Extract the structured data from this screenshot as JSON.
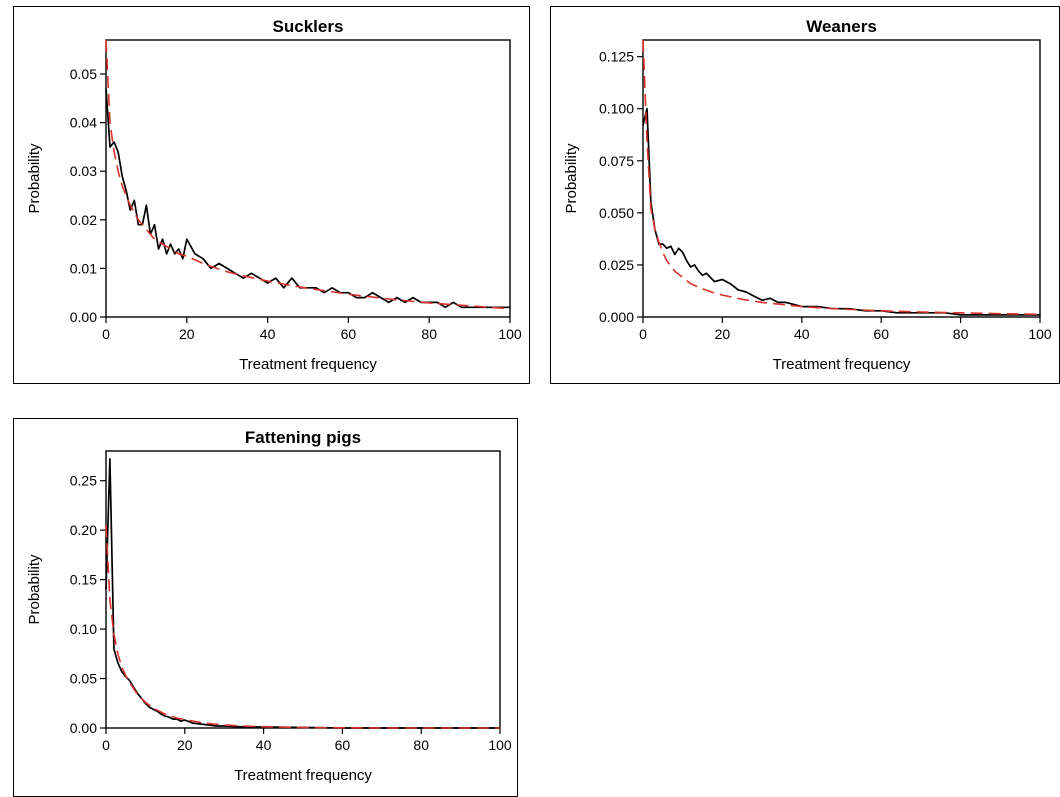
{
  "chart_data": [
    {
      "type": "line",
      "title": "Sucklers",
      "xlabel": "Treatment frequency",
      "ylabel": "Probability",
      "xlim": [
        0,
        100
      ],
      "ylim": [
        0,
        0.057
      ],
      "xticks": [
        "0",
        "20",
        "40",
        "60",
        "80",
        "100"
      ],
      "xtick_values": [
        0,
        20,
        40,
        60,
        80,
        100
      ],
      "yticks": [
        "0.00",
        "0.01",
        "0.02",
        "0.03",
        "0.04",
        "0.05"
      ],
      "ytick_values": [
        0,
        0.01,
        0.02,
        0.03,
        0.04,
        0.05
      ],
      "grid": false,
      "series": [
        {
          "style": "solid",
          "color": "#000000",
          "x": [
            0,
            1,
            2,
            3,
            4,
            5,
            6,
            7,
            8,
            9,
            10,
            11,
            12,
            13,
            14,
            15,
            16,
            17,
            18,
            19,
            20,
            22,
            24,
            26,
            28,
            30,
            32,
            34,
            36,
            38,
            40,
            42,
            44,
            46,
            48,
            50,
            52,
            54,
            56,
            58,
            60,
            62,
            64,
            66,
            68,
            70,
            72,
            74,
            76,
            78,
            80,
            82,
            84,
            86,
            88,
            90,
            92,
            94,
            96,
            98,
            100
          ],
          "y": [
            0.047,
            0.035,
            0.036,
            0.034,
            0.029,
            0.026,
            0.022,
            0.024,
            0.019,
            0.019,
            0.023,
            0.017,
            0.019,
            0.014,
            0.016,
            0.013,
            0.015,
            0.013,
            0.014,
            0.012,
            0.016,
            0.013,
            0.012,
            0.01,
            0.011,
            0.01,
            0.009,
            0.008,
            0.009,
            0.008,
            0.007,
            0.008,
            0.006,
            0.008,
            0.006,
            0.006,
            0.006,
            0.005,
            0.006,
            0.005,
            0.005,
            0.004,
            0.004,
            0.005,
            0.004,
            0.003,
            0.004,
            0.003,
            0.004,
            0.003,
            0.003,
            0.003,
            0.002,
            0.003,
            0.002,
            0.002,
            0.002,
            0.002,
            0.002,
            0.002,
            0.002
          ]
        },
        {
          "style": "dashed",
          "color": "#d9322b",
          "x": [
            0,
            1,
            2,
            3,
            4,
            5,
            6,
            8,
            10,
            12,
            15,
            18,
            20,
            25,
            30,
            35,
            40,
            45,
            50,
            55,
            60,
            65,
            70,
            75,
            80,
            85,
            90,
            95,
            100
          ],
          "y": [
            0.057,
            0.04,
            0.034,
            0.03,
            0.027,
            0.025,
            0.023,
            0.02,
            0.018,
            0.016,
            0.0145,
            0.013,
            0.0125,
            0.0107,
            0.0093,
            0.0083,
            0.0074,
            0.0066,
            0.0059,
            0.0053,
            0.0047,
            0.0042,
            0.0037,
            0.0033,
            0.0029,
            0.0026,
            0.0023,
            0.002,
            0.0017
          ]
        }
      ]
    },
    {
      "type": "line",
      "title": "Weaners",
      "xlabel": "Treatment frequency",
      "ylabel": "Probability",
      "xlim": [
        0,
        100
      ],
      "ylim": [
        0,
        0.133
      ],
      "xticks": [
        "0",
        "20",
        "40",
        "60",
        "80",
        "100"
      ],
      "xtick_values": [
        0,
        20,
        40,
        60,
        80,
        100
      ],
      "yticks": [
        "0.000",
        "0.025",
        "0.050",
        "0.075",
        "0.100",
        "0.125"
      ],
      "ytick_values": [
        0,
        0.025,
        0.05,
        0.075,
        0.1,
        0.125
      ],
      "grid": false,
      "series": [
        {
          "style": "solid",
          "color": "#000000",
          "x": [
            0,
            1,
            2,
            3,
            4,
            5,
            6,
            7,
            8,
            9,
            10,
            11,
            12,
            13,
            14,
            15,
            16,
            18,
            20,
            22,
            24,
            26,
            28,
            30,
            32,
            34,
            36,
            38,
            40,
            44,
            48,
            52,
            56,
            60,
            64,
            68,
            72,
            76,
            80,
            84,
            88,
            92,
            96,
            100
          ],
          "y": [
            0.092,
            0.1,
            0.055,
            0.042,
            0.035,
            0.035,
            0.033,
            0.034,
            0.03,
            0.033,
            0.031,
            0.027,
            0.024,
            0.025,
            0.022,
            0.02,
            0.021,
            0.017,
            0.018,
            0.016,
            0.013,
            0.012,
            0.01,
            0.008,
            0.009,
            0.007,
            0.007,
            0.006,
            0.005,
            0.005,
            0.004,
            0.004,
            0.003,
            0.003,
            0.002,
            0.002,
            0.002,
            0.002,
            0.001,
            0.001,
            0.001,
            0.001,
            0.001,
            0.001
          ]
        },
        {
          "style": "dashed",
          "color": "#d9322b",
          "x": [
            0,
            1,
            2,
            3,
            4,
            5,
            6,
            8,
            10,
            12,
            15,
            18,
            20,
            25,
            30,
            35,
            40,
            50,
            60,
            70,
            80,
            90,
            100
          ],
          "y": [
            0.133,
            0.085,
            0.052,
            0.042,
            0.036,
            0.031,
            0.027,
            0.022,
            0.019,
            0.016,
            0.0135,
            0.0115,
            0.0105,
            0.0085,
            0.007,
            0.006,
            0.005,
            0.0038,
            0.003,
            0.0024,
            0.002,
            0.0016,
            0.0013
          ]
        }
      ]
    },
    {
      "type": "line",
      "title": "Fattening pigs",
      "xlabel": "Treatment frequency",
      "ylabel": "Probability",
      "xlim": [
        0,
        100
      ],
      "ylim": [
        0,
        0.28
      ],
      "xticks": [
        "0",
        "20",
        "40",
        "60",
        "80",
        "100"
      ],
      "xtick_values": [
        0,
        20,
        40,
        60,
        80,
        100
      ],
      "yticks": [
        "0.00",
        "0.05",
        "0.10",
        "0.15",
        "0.20",
        "0.25"
      ],
      "ytick_values": [
        0,
        0.05,
        0.1,
        0.15,
        0.2,
        0.25
      ],
      "grid": false,
      "series": [
        {
          "style": "solid",
          "color": "#000000",
          "x": [
            0,
            1,
            2,
            3,
            4,
            5,
            6,
            7,
            8,
            9,
            10,
            11,
            12,
            13,
            14,
            15,
            16,
            17,
            18,
            19,
            20,
            22,
            24,
            26,
            28,
            30,
            35,
            40,
            50,
            60,
            70,
            80,
            90,
            100
          ],
          "y": [
            0.14,
            0.272,
            0.08,
            0.066,
            0.057,
            0.052,
            0.048,
            0.041,
            0.035,
            0.03,
            0.025,
            0.021,
            0.019,
            0.017,
            0.014,
            0.012,
            0.011,
            0.009,
            0.009,
            0.007,
            0.008,
            0.005,
            0.004,
            0.003,
            0.002,
            0.002,
            0.001,
            0.001,
            0.0005,
            0,
            0,
            0,
            0,
            0
          ]
        },
        {
          "style": "dashed",
          "color": "#d9322b",
          "x": [
            0,
            1,
            2,
            3,
            4,
            5,
            6,
            8,
            10,
            12,
            15,
            18,
            20,
            25,
            30,
            35,
            40,
            50,
            60,
            70,
            80,
            90,
            100
          ],
          "y": [
            0.205,
            0.13,
            0.095,
            0.075,
            0.062,
            0.053,
            0.046,
            0.034,
            0.026,
            0.02,
            0.014,
            0.01,
            0.0085,
            0.005,
            0.003,
            0.002,
            0.0012,
            0.0005,
            0.0002,
            0,
            0,
            0,
            0
          ]
        }
      ]
    }
  ]
}
